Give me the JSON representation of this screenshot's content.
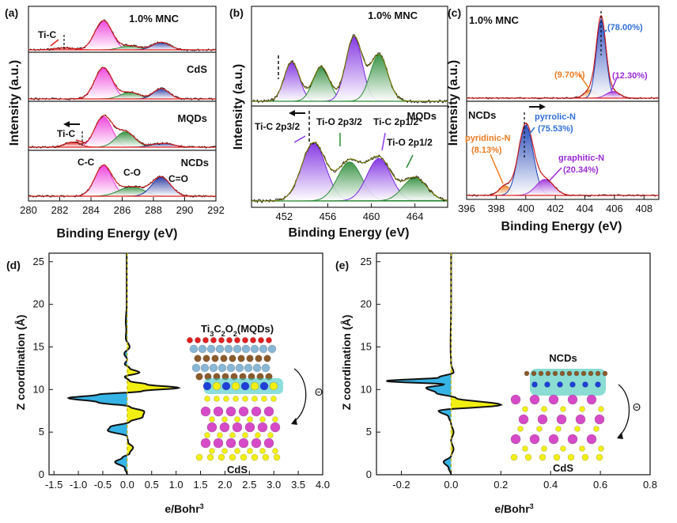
{
  "colors": {
    "magenta_peak": "#ee35d8",
    "green_peak": "#2a8a36",
    "navy_peak": "#1f2f9e",
    "violet_peak": "#8a3be8",
    "blue_peak": "#2f6fd8",
    "orange_peak": "#ef7b1f",
    "purple_peak": "#9a2ad8",
    "red_fit": "#e0201f",
    "cyan_fill": "#36b4e6",
    "yellow_fill": "#f2ef12"
  },
  "chart_data": [
    {
      "panel": "(a)",
      "type": "line",
      "xlabel": "Binding Energy (eV)",
      "ylabel": "Intensity (a.u.)",
      "xlim": [
        280,
        292
      ],
      "xticks": [
        "280",
        "282",
        "284",
        "286",
        "288",
        "290",
        "292"
      ],
      "subplots": [
        {
          "title": "1.0% MNC",
          "peaks": [
            {
              "center": 284.8,
              "height": 0.85,
              "width": 0.55,
              "color": "magenta"
            },
            {
              "center": 286.5,
              "height": 0.12,
              "width": 0.6,
              "color": "green"
            },
            {
              "center": 288.5,
              "height": 0.22,
              "width": 0.55,
              "color": "navy"
            },
            {
              "center": 282.3,
              "height": 0.06,
              "width": 0.6,
              "color": "red"
            }
          ],
          "annotations": [
            "Ti-C"
          ]
        },
        {
          "title": "CdS",
          "peaks": [
            {
              "center": 284.8,
              "height": 0.85,
              "width": 0.55,
              "color": "magenta"
            },
            {
              "center": 286.5,
              "height": 0.18,
              "width": 0.6,
              "color": "green"
            },
            {
              "center": 288.5,
              "height": 0.28,
              "width": 0.5,
              "color": "navy"
            }
          ],
          "annotations": []
        },
        {
          "title": "MQDs",
          "peaks": [
            {
              "center": 284.8,
              "height": 0.8,
              "width": 0.55,
              "color": "magenta"
            },
            {
              "center": 286.2,
              "height": 0.4,
              "width": 0.6,
              "color": "green"
            },
            {
              "center": 288.6,
              "height": 0.1,
              "width": 0.7,
              "color": "navy"
            },
            {
              "center": 282.8,
              "height": 0.13,
              "width": 0.5,
              "color": "red"
            }
          ],
          "annotations": [
            "Ti-C"
          ]
        },
        {
          "title": "NCDs",
          "peaks": [
            {
              "center": 284.8,
              "height": 0.8,
              "width": 0.55,
              "color": "magenta"
            },
            {
              "center": 286.6,
              "height": 0.25,
              "width": 0.8,
              "color": "green"
            },
            {
              "center": 288.5,
              "height": 0.5,
              "width": 0.6,
              "color": "navy"
            }
          ],
          "annotations": [
            "C-C",
            "C-O",
            "C=O"
          ]
        }
      ]
    },
    {
      "panel": "(b)",
      "type": "line",
      "xlabel": "Binding Energy (eV)",
      "ylabel": "Intensity (a.u.)",
      "xlim": [
        449,
        467
      ],
      "xticks": [
        "452",
        "456",
        "460",
        "464"
      ],
      "subplots": [
        {
          "title": "1.0% MNC",
          "peaks": [
            {
              "center": 452.7,
              "height": 0.55,
              "width": 0.7,
              "color": "violet"
            },
            {
              "center": 455.4,
              "height": 0.48,
              "width": 0.75,
              "color": "green"
            },
            {
              "center": 458.4,
              "height": 0.9,
              "width": 0.75,
              "color": "violet"
            },
            {
              "center": 460.7,
              "height": 0.65,
              "width": 0.8,
              "color": "green"
            }
          ],
          "annotations": []
        },
        {
          "title": "MQDs",
          "peaks": [
            {
              "center": 454.7,
              "height": 0.82,
              "width": 1.1,
              "color": "violet"
            },
            {
              "center": 458.0,
              "height": 0.55,
              "width": 1.1,
              "color": "green"
            },
            {
              "center": 460.7,
              "height": 0.6,
              "width": 1.1,
              "color": "violet"
            },
            {
              "center": 464.0,
              "height": 0.33,
              "width": 1.1,
              "color": "green"
            }
          ],
          "annotations": [
            "Ti-C 2p3/2",
            "Ti-O 2p3/2",
            "Ti-C 2p1/2",
            "Ti-O 2p1/2"
          ]
        }
      ]
    },
    {
      "panel": "(c)",
      "type": "line",
      "xlabel": "Binding Energy (eV)",
      "ylabel": "Intensity (a.u.)",
      "xlim": [
        396,
        409
      ],
      "xticks": [
        "396",
        "398",
        "400",
        "402",
        "404",
        "406",
        "408"
      ],
      "subplots": [
        {
          "title": "1.0% MNC",
          "peaks": [
            {
              "center": 404.4,
              "height": 0.1,
              "width": 0.4,
              "color": "orange"
            },
            {
              "center": 405.1,
              "height": 0.95,
              "width": 0.32,
              "color": "blue"
            },
            {
              "center": 405.9,
              "height": 0.08,
              "width": 0.45,
              "color": "purple"
            }
          ],
          "annotations": [
            "(78.00%)",
            "(9.70%)",
            "(12.30%)"
          ]
        },
        {
          "title": "NCDs",
          "peaks": [
            {
              "center": 398.6,
              "height": 0.12,
              "width": 0.4,
              "color": "orange"
            },
            {
              "center": 400.0,
              "height": 0.88,
              "width": 0.5,
              "color": "blue"
            },
            {
              "center": 401.3,
              "height": 0.2,
              "width": 0.6,
              "color": "purple"
            }
          ],
          "annotations": [
            "pyridinic-N",
            "(8.13%)",
            "pyrrolic-N",
            "(75.53%)",
            "graphitic-N",
            "(20.34%)"
          ]
        }
      ]
    },
    {
      "panel": "(d)",
      "type": "line",
      "xlabel": "e/Bohr",
      "xlabel_sup": "3",
      "ylabel": "Z coordination (Å)",
      "xlim": [
        -1.6,
        4.0
      ],
      "ylim": [
        0,
        26
      ],
      "xticks": [
        "-1.5",
        "-1.0",
        "-0.5",
        "0.0",
        "0.5",
        "1.0",
        "1.5",
        "2.0",
        "2.5",
        "3.0",
        "3.5",
        "4.0"
      ],
      "yticks": [
        "0",
        "5",
        "10",
        "15",
        "20",
        "25"
      ],
      "profile": [
        {
          "z": 0.0,
          "v": 0.0
        },
        {
          "z": 0.8,
          "v": -0.05
        },
        {
          "z": 1.5,
          "v": -0.25
        },
        {
          "z": 2.0,
          "v": -0.1
        },
        {
          "z": 2.5,
          "v": 0.05
        },
        {
          "z": 3.2,
          "v": 0.12
        },
        {
          "z": 3.8,
          "v": 0.02
        },
        {
          "z": 4.5,
          "v": 0.0
        },
        {
          "z": 5.2,
          "v": -0.4
        },
        {
          "z": 5.6,
          "v": -0.35
        },
        {
          "z": 6.2,
          "v": 0.05
        },
        {
          "z": 6.8,
          "v": 0.32
        },
        {
          "z": 7.4,
          "v": 0.35
        },
        {
          "z": 8.0,
          "v": 0.05
        },
        {
          "z": 8.5,
          "v": -0.6
        },
        {
          "z": 9.0,
          "v": -1.2
        },
        {
          "z": 9.4,
          "v": -0.6
        },
        {
          "z": 9.8,
          "v": 0.3
        },
        {
          "z": 10.2,
          "v": 1.05
        },
        {
          "z": 10.6,
          "v": 0.4
        },
        {
          "z": 11.0,
          "v": 0.05
        },
        {
          "z": 11.5,
          "v": -0.05
        },
        {
          "z": 12.0,
          "v": 0.25
        },
        {
          "z": 12.5,
          "v": 0.05
        },
        {
          "z": 13.0,
          "v": -0.05
        },
        {
          "z": 13.5,
          "v": 0.0
        },
        {
          "z": 14.2,
          "v": -0.06
        },
        {
          "z": 15.0,
          "v": 0.05
        },
        {
          "z": 16.0,
          "v": -0.03
        },
        {
          "z": 17.0,
          "v": -0.02
        },
        {
          "z": 18.0,
          "v": -0.03
        },
        {
          "z": 20.0,
          "v": -0.01
        },
        {
          "z": 22.0,
          "v": -0.01
        },
        {
          "z": 26.0,
          "v": -0.01
        }
      ],
      "labels": [
        "Ti",
        "3",
        "C",
        "2",
        "O",
        "2",
        "(MQDs)",
        "CdS",
        "Θ"
      ]
    },
    {
      "panel": "(e)",
      "type": "line",
      "xlabel": "e/Bohr",
      "xlabel_sup": "3",
      "ylabel": "Z coordination (Å)",
      "xlim": [
        -0.3,
        0.8
      ],
      "ylim": [
        0,
        26
      ],
      "xticks": [
        "-0.2",
        "0.0",
        "0.2",
        "0.4",
        "0.6",
        "0.8"
      ],
      "yticks": [
        "0",
        "5",
        "10",
        "15",
        "20",
        "25"
      ],
      "profile": [
        {
          "z": 0.0,
          "v": 0.0
        },
        {
          "z": 0.8,
          "v": -0.01
        },
        {
          "z": 1.5,
          "v": -0.03
        },
        {
          "z": 2.2,
          "v": 0.0
        },
        {
          "z": 3.0,
          "v": 0.01
        },
        {
          "z": 4.0,
          "v": 0.0
        },
        {
          "z": 5.0,
          "v": 0.01
        },
        {
          "z": 6.0,
          "v": 0.0
        },
        {
          "z": 6.8,
          "v": -0.01
        },
        {
          "z": 7.5,
          "v": -0.05
        },
        {
          "z": 8.2,
          "v": 0.2
        },
        {
          "z": 9.0,
          "v": 0.02
        },
        {
          "z": 9.6,
          "v": -0.06
        },
        {
          "z": 10.2,
          "v": -0.1
        },
        {
          "z": 10.6,
          "v": -0.03
        },
        {
          "z": 11.0,
          "v": -0.26
        },
        {
          "z": 11.4,
          "v": -0.05
        },
        {
          "z": 12.0,
          "v": 0.01
        },
        {
          "z": 13.0,
          "v": 0.0
        },
        {
          "z": 15.0,
          "v": -0.002
        },
        {
          "z": 20.0,
          "v": 0.0
        },
        {
          "z": 26.0,
          "v": 0.0
        }
      ],
      "labels": [
        "NCDs",
        "CdS",
        "Θ"
      ]
    }
  ]
}
